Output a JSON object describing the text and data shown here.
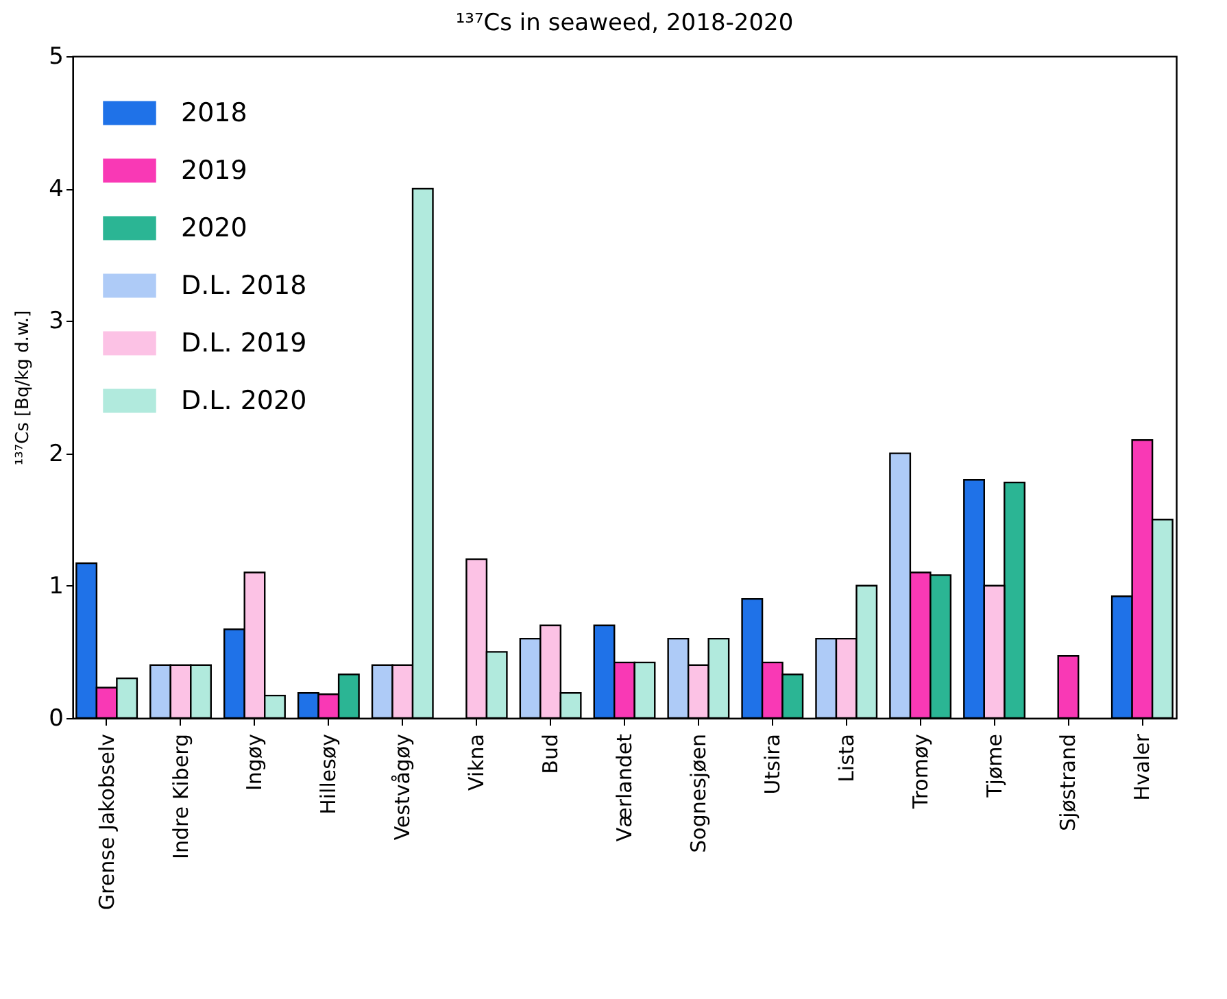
{
  "chart_data": {
    "type": "bar",
    "title": "¹³⁷Cs in seaweed, 2018-2020",
    "ylabel": "¹³⁷Cs [Bq/kg d.w.]",
    "categories": [
      "Grense Jakobselv",
      "Indre Kiberg",
      "Ingøy",
      "Hillesøy",
      "Vestvågøy",
      "Vikna",
      "Bud",
      "Værlandet",
      "Sognesjøen",
      "Utsira",
      "Lista",
      "Tromøy",
      "Tjøme",
      "Sjøstrand",
      "Hvaler"
    ],
    "series": [
      {
        "name": "2018",
        "color": "#1f72e8",
        "values": [
          1.17,
          null,
          0.67,
          0.19,
          null,
          null,
          null,
          0.7,
          null,
          0.9,
          null,
          null,
          1.8,
          null,
          0.92
        ]
      },
      {
        "name": "2019",
        "color": "#f939b5",
        "values": [
          0.23,
          null,
          null,
          0.18,
          null,
          null,
          null,
          0.42,
          null,
          0.42,
          null,
          1.1,
          null,
          0.47,
          2.1
        ]
      },
      {
        "name": "2020",
        "color": "#2bb594",
        "values": [
          null,
          null,
          null,
          0.33,
          null,
          null,
          null,
          null,
          null,
          0.33,
          null,
          1.08,
          1.78,
          null,
          null
        ]
      },
      {
        "name": "D.L. 2018",
        "color": "#aecbf7",
        "values": [
          null,
          0.4,
          null,
          null,
          0.4,
          null,
          0.6,
          null,
          0.6,
          null,
          0.6,
          2.0,
          null,
          null,
          null
        ]
      },
      {
        "name": "D.L. 2019",
        "color": "#fcc2e5",
        "values": [
          null,
          0.4,
          1.1,
          null,
          0.4,
          1.2,
          0.7,
          null,
          0.4,
          null,
          0.6,
          null,
          1.0,
          null,
          null
        ]
      },
      {
        "name": "D.L. 2020",
        "color": "#b1eadd",
        "values": [
          0.3,
          0.4,
          0.17,
          null,
          4.0,
          0.5,
          0.19,
          0.42,
          0.6,
          null,
          1.0,
          null,
          null,
          null,
          1.5
        ]
      }
    ],
    "ylim": [
      0,
      5
    ],
    "yticks": [
      0,
      1,
      2,
      3,
      4,
      5
    ],
    "legend": "top left"
  }
}
